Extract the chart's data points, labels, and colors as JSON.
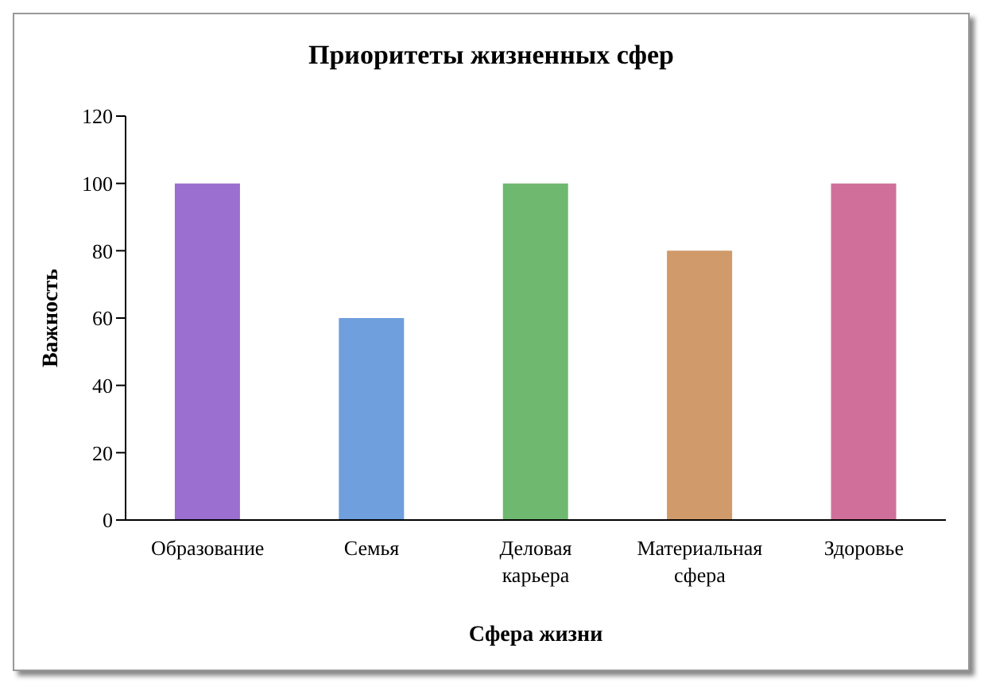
{
  "chart_data": {
    "type": "bar",
    "title": "Приоритеты жизненных сфер",
    "xlabel": "Сфера жизни",
    "ylabel": "Важность",
    "categories": [
      "Образование",
      "Семья",
      "Деловая карьера",
      "Материальная сфера",
      "Здоровье"
    ],
    "values": [
      100,
      60,
      100,
      80,
      100
    ],
    "colors": [
      "#9a6fd0",
      "#6f9fdc",
      "#6fb86f",
      "#d09a6a",
      "#d0709a"
    ],
    "ylim": [
      0,
      120
    ],
    "yticks": [
      0,
      20,
      40,
      60,
      80,
      100,
      120
    ],
    "grid": false,
    "legend": false
  }
}
